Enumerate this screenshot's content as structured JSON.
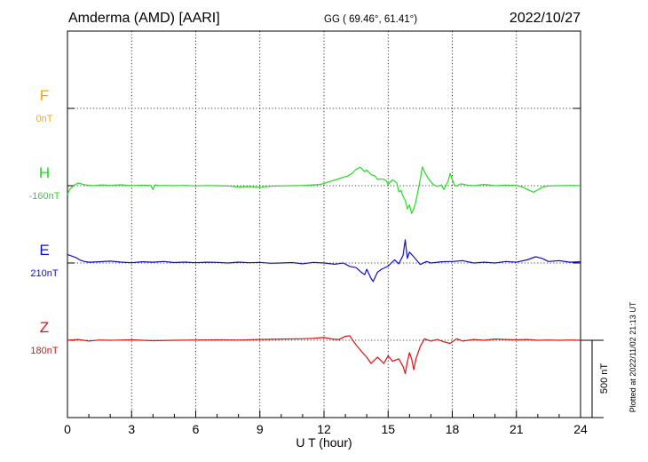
{
  "header": {
    "station": "Amderma (AMD)  [AARI]",
    "coords": "GG ( 69.46°,  61.41°)",
    "date": "2022/10/27"
  },
  "side_note": "Plotted at 2022/11/02 21:13 UT",
  "scale_label": "500 nT",
  "colors": {
    "F": "#f5a800",
    "H": "#22dd22",
    "E": "#1010cc",
    "Z": "#e01010",
    "axis": "#000000"
  },
  "chart_data": {
    "type": "line",
    "title": "Amderma (AMD)  [AARI]",
    "xlabel": "U T (hour)",
    "xlim": [
      0,
      24
    ],
    "x_ticks": [
      "0",
      "3",
      "6",
      "9",
      "12",
      "15",
      "18",
      "21",
      "24"
    ],
    "grid": true,
    "scale_bar_nT": 500,
    "series": [
      {
        "name": "F",
        "baseline_label": "0nT",
        "color": "#f5a800",
        "baseline_offset": 0,
        "x": [],
        "y": []
      },
      {
        "name": "H",
        "baseline_label": "-160nT",
        "color": "#22dd22",
        "baseline_offset": 1,
        "x": [
          0,
          0.1,
          0.3,
          0.5,
          0.7,
          0.9,
          1.2,
          1.6,
          2.0,
          2.5,
          3.0,
          3.5,
          3.9,
          4.0,
          4.1,
          4.3,
          4.6,
          5.0,
          5.5,
          6.0,
          6.5,
          7.0,
          7.5,
          8.0,
          8.5,
          9.0,
          9.5,
          10.0,
          10.5,
          11.0,
          11.5,
          11.8,
          12.0,
          12.3,
          12.6,
          12.9,
          13.1,
          13.3,
          13.5,
          13.7,
          13.9,
          14.0,
          14.2,
          14.4,
          14.5,
          14.7,
          14.9,
          15.0,
          15.2,
          15.4,
          15.5,
          15.6,
          15.7,
          15.8,
          15.9,
          16.0,
          16.1,
          16.2,
          16.3,
          16.4,
          16.5,
          16.6,
          16.7,
          16.9,
          17.1,
          17.3,
          17.5,
          17.6,
          17.8,
          17.9,
          18.0,
          18.1,
          18.2,
          18.4,
          18.7,
          19.0,
          19.5,
          20.0,
          20.5,
          21.0,
          21.3,
          21.6,
          21.8,
          22.0,
          22.2,
          22.5,
          23.0,
          23.5,
          24.0
        ],
        "y": [
          -55,
          -25,
          2,
          18,
          10,
          4,
          0,
          5,
          2,
          6,
          0,
          3,
          2,
          -25,
          5,
          0,
          2,
          0,
          2,
          -2,
          1,
          0,
          -2,
          -8,
          -6,
          -10,
          -4,
          -1,
          0,
          2,
          5,
          8,
          14,
          28,
          40,
          55,
          62,
          78,
          105,
          120,
          90,
          102,
          72,
          62,
          40,
          44,
          35,
          10,
          38,
          20,
          -40,
          -30,
          -70,
          -95,
          -150,
          -125,
          -180,
          -150,
          -100,
          -30,
          40,
          122,
          90,
          42,
          10,
          -5,
          5,
          -25,
          28,
          80,
          40,
          5,
          -2,
          12,
          4,
          0,
          8,
          0,
          4,
          2,
          -10,
          -30,
          -42,
          -28,
          -10,
          -2,
          0,
          2,
          0
        ]
      },
      {
        "name": "E",
        "baseline_label": "210nT",
        "color": "#1010cc",
        "baseline_offset": 2,
        "x": [
          0,
          0.2,
          0.4,
          0.6,
          0.8,
          1.0,
          1.5,
          2.0,
          2.5,
          3.0,
          3.5,
          4.0,
          4.5,
          5.0,
          5.5,
          6.0,
          6.5,
          7.0,
          7.5,
          8.0,
          8.5,
          9.0,
          9.5,
          10.0,
          10.5,
          11.0,
          11.5,
          12.0,
          12.5,
          12.9,
          13.2,
          13.5,
          13.7,
          13.9,
          14.0,
          14.2,
          14.3,
          14.5,
          14.7,
          15.0,
          15.3,
          15.5,
          15.7,
          15.8,
          15.9,
          16.0,
          16.2,
          16.5,
          16.8,
          17.0,
          17.5,
          18.0,
          18.5,
          19.0,
          19.5,
          20.0,
          20.5,
          21.0,
          21.5,
          21.9,
          22.2,
          22.5,
          23.0,
          23.5,
          24.0
        ],
        "y": [
          55,
          45,
          35,
          18,
          10,
          5,
          8,
          12,
          6,
          2,
          8,
          5,
          10,
          3,
          6,
          2,
          5,
          4,
          0,
          6,
          2,
          4,
          -2,
          0,
          3,
          -5,
          4,
          0,
          -8,
          0,
          -22,
          -30,
          -55,
          -75,
          -40,
          -100,
          -120,
          -60,
          -40,
          -20,
          20,
          -5,
          50,
          150,
          30,
          70,
          40,
          -10,
          10,
          0,
          8,
          10,
          15,
          0,
          5,
          0,
          10,
          5,
          20,
          40,
          30,
          10,
          15,
          5,
          8
        ]
      },
      {
        "name": "Z",
        "baseline_label": "180nT",
        "color": "#e01010",
        "baseline_offset": 3,
        "x": [
          0,
          0.5,
          1.0,
          1.5,
          2.0,
          3.0,
          4.0,
          5.0,
          6.0,
          7.0,
          8.0,
          9.0,
          10.0,
          11.0,
          11.5,
          12.0,
          12.4,
          12.7,
          13.0,
          13.2,
          13.5,
          13.8,
          14.0,
          14.2,
          14.5,
          14.8,
          15.0,
          15.2,
          15.5,
          15.7,
          15.8,
          15.9,
          16.0,
          16.1,
          16.2,
          16.3,
          16.5,
          16.7,
          17.0,
          17.3,
          17.6,
          17.9,
          18.2,
          18.5,
          19.0,
          19.5,
          20.0,
          20.5,
          21.0,
          21.5,
          22.0,
          22.5,
          23.0,
          23.5,
          24.0
        ],
        "y": [
          0,
          5,
          -5,
          2,
          0,
          3,
          -3,
          0,
          2,
          3,
          2,
          5,
          8,
          10,
          12,
          18,
          8,
          5,
          25,
          30,
          -30,
          -80,
          -110,
          -150,
          -110,
          -150,
          -100,
          -135,
          -120,
          -170,
          -215,
          -140,
          -80,
          -120,
          -190,
          -120,
          -40,
          10,
          -5,
          5,
          -10,
          -20,
          10,
          -5,
          5,
          0,
          8,
          5,
          3,
          5,
          0,
          2,
          0,
          2,
          0
        ]
      }
    ]
  }
}
